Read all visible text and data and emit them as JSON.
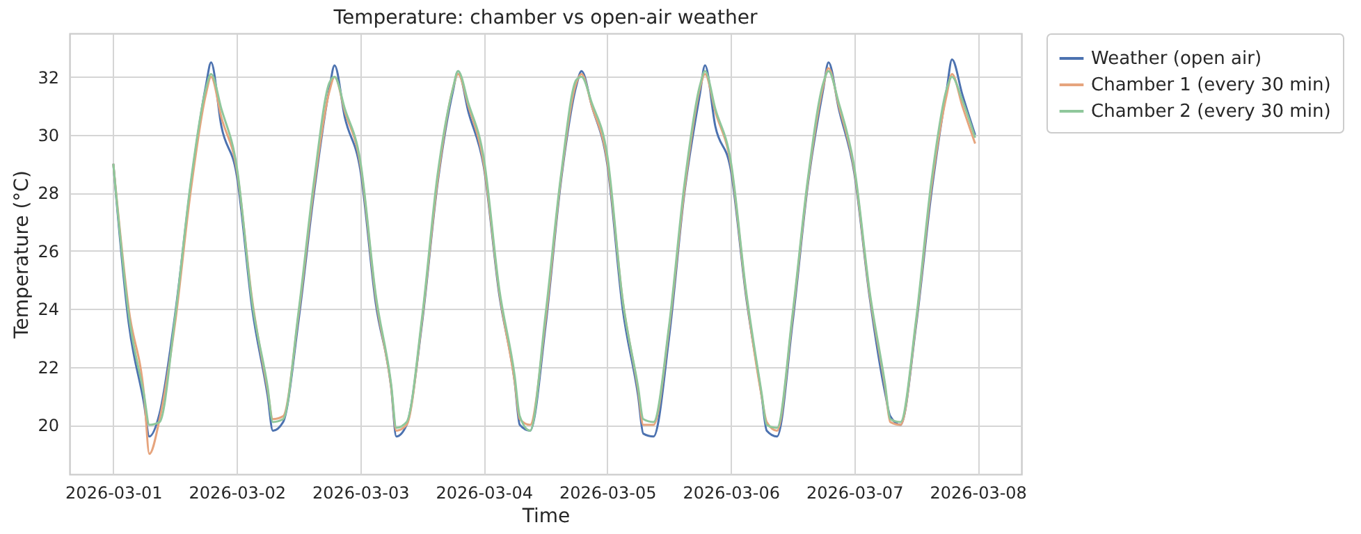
{
  "chart_data": {
    "type": "line",
    "title": "Temperature: chamber vs open-air weather",
    "xlabel": "Time",
    "ylabel": "Temperature (°C)",
    "x": [
      "2026-03-01T00:00",
      "2026-03-01T03:00",
      "2026-03-01T06:00",
      "2026-03-01T07:00",
      "2026-03-01T09:00",
      "2026-03-01T12:00",
      "2026-03-01T15:00",
      "2026-03-01T18:00",
      "2026-03-01T19:00",
      "2026-03-01T21:00",
      "2026-03-02T00:00",
      "2026-03-02T03:00",
      "2026-03-02T06:00",
      "2026-03-02T07:00",
      "2026-03-02T09:00",
      "2026-03-02T12:00",
      "2026-03-02T15:00",
      "2026-03-02T18:00",
      "2026-03-02T19:00",
      "2026-03-02T21:00",
      "2026-03-03T00:00",
      "2026-03-03T03:00",
      "2026-03-03T06:00",
      "2026-03-03T07:00",
      "2026-03-03T09:00",
      "2026-03-03T12:00",
      "2026-03-03T15:00",
      "2026-03-03T18:00",
      "2026-03-03T19:00",
      "2026-03-03T21:00",
      "2026-03-04T00:00",
      "2026-03-04T03:00",
      "2026-03-04T06:00",
      "2026-03-04T07:00",
      "2026-03-04T09:00",
      "2026-03-04T12:00",
      "2026-03-04T15:00",
      "2026-03-04T18:00",
      "2026-03-04T19:00",
      "2026-03-04T21:00",
      "2026-03-05T00:00",
      "2026-03-05T03:00",
      "2026-03-05T06:00",
      "2026-03-05T07:00",
      "2026-03-05T09:00",
      "2026-03-05T12:00",
      "2026-03-05T15:00",
      "2026-03-05T18:00",
      "2026-03-05T19:00",
      "2026-03-05T21:00",
      "2026-03-06T00:00",
      "2026-03-06T03:00",
      "2026-03-06T06:00",
      "2026-03-06T07:00",
      "2026-03-06T09:00",
      "2026-03-06T12:00",
      "2026-03-06T15:00",
      "2026-03-06T18:00",
      "2026-03-06T19:00",
      "2026-03-06T21:00",
      "2026-03-07T00:00",
      "2026-03-07T03:00",
      "2026-03-07T06:00",
      "2026-03-07T07:00",
      "2026-03-07T09:00",
      "2026-03-07T12:00",
      "2026-03-07T15:00",
      "2026-03-07T18:00",
      "2026-03-07T19:00",
      "2026-03-07T21:00",
      "2026-03-07T23:30"
    ],
    "series": [
      {
        "name": "Weather (open air)",
        "color": "#4c72b0",
        "values": [
          29.0,
          23.5,
          20.7,
          19.6,
          20.4,
          23.8,
          28.2,
          31.7,
          32.5,
          30.3,
          28.6,
          24.0,
          21.0,
          19.8,
          20.1,
          23.6,
          28.0,
          31.6,
          32.4,
          30.6,
          28.8,
          24.2,
          21.3,
          19.6,
          20.0,
          23.5,
          28.3,
          31.5,
          32.2,
          30.8,
          28.9,
          24.5,
          21.5,
          20.0,
          19.8,
          23.4,
          28.4,
          31.7,
          32.2,
          31.0,
          29.0,
          24.0,
          21.0,
          19.7,
          19.6,
          23.0,
          28.0,
          31.4,
          32.4,
          30.3,
          28.8,
          24.4,
          21.0,
          19.8,
          19.6,
          23.5,
          28.3,
          31.6,
          32.5,
          30.9,
          28.7,
          24.4,
          21.1,
          20.3,
          20.0,
          23.4,
          28.0,
          31.6,
          32.6,
          31.4,
          30.0
        ]
      },
      {
        "name": "Chamber 1 (every 30 min)",
        "color": "#e6a47d",
        "values": [
          29.0,
          24.0,
          21.0,
          19.0,
          20.2,
          23.5,
          28.0,
          31.4,
          32.0,
          30.6,
          28.8,
          24.3,
          21.2,
          20.2,
          20.3,
          23.8,
          28.2,
          31.5,
          32.0,
          30.8,
          29.0,
          24.4,
          21.3,
          19.8,
          20.0,
          23.6,
          28.4,
          31.6,
          32.1,
          31.0,
          29.0,
          24.6,
          21.5,
          20.2,
          20.0,
          23.6,
          28.5,
          31.8,
          32.1,
          31.0,
          29.1,
          24.3,
          21.2,
          20.0,
          20.0,
          23.3,
          28.1,
          31.6,
          32.1,
          30.8,
          29.0,
          24.5,
          21.0,
          20.1,
          19.8,
          23.7,
          28.4,
          31.7,
          32.3,
          31.0,
          28.8,
          24.5,
          21.3,
          20.1,
          20.0,
          23.5,
          28.2,
          31.4,
          32.1,
          31.0,
          29.7
        ]
      },
      {
        "name": "Chamber 2 (every 30 min)",
        "color": "#8fc79b",
        "values": [
          29.0,
          23.8,
          21.0,
          20.0,
          20.1,
          23.7,
          28.3,
          31.6,
          32.1,
          30.9,
          28.9,
          24.2,
          21.3,
          20.1,
          20.2,
          23.9,
          28.4,
          31.8,
          32.0,
          30.9,
          29.1,
          24.5,
          21.4,
          19.9,
          20.1,
          23.7,
          28.6,
          31.6,
          32.2,
          31.1,
          29.2,
          24.7,
          21.7,
          20.3,
          19.8,
          23.8,
          28.6,
          31.9,
          32.0,
          31.1,
          29.3,
          24.3,
          21.3,
          20.2,
          20.1,
          23.4,
          28.3,
          31.7,
          32.2,
          30.9,
          29.1,
          24.6,
          21.1,
          20.0,
          19.9,
          23.8,
          28.5,
          31.8,
          32.2,
          31.1,
          28.9,
          24.6,
          21.4,
          20.2,
          20.1,
          23.6,
          28.4,
          31.6,
          32.0,
          31.2,
          29.9
        ]
      }
    ],
    "xlim": [
      "2026-02-28T15:30",
      "2026-03-08T08:30"
    ],
    "xticks": [
      "2026-03-01",
      "2026-03-02",
      "2026-03-03",
      "2026-03-04",
      "2026-03-05",
      "2026-03-06",
      "2026-03-07",
      "2026-03-08"
    ],
    "ylim": [
      18.3,
      33.5
    ],
    "yticks": [
      20,
      22,
      24,
      26,
      28,
      30,
      32
    ],
    "grid": true,
    "legend": "right",
    "line_style": "solid"
  }
}
